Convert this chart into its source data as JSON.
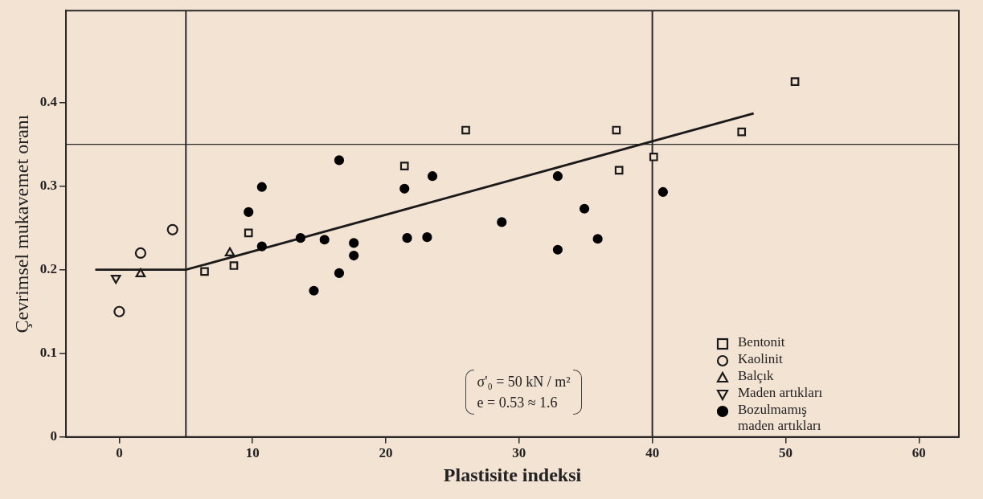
{
  "chart_data": {
    "type": "scatter",
    "xlabel": "Plastisite indeksi",
    "ylabel": "Çevrimsel mukavemet oranı",
    "xlim": [
      -4,
      63
    ],
    "xticks": [
      0,
      10,
      20,
      30,
      40,
      50,
      60
    ],
    "ylim": [
      0,
      0.51
    ],
    "yticks": [
      0,
      0.1,
      0.2,
      0.3,
      0.4
    ],
    "grid": false,
    "legend": "bottom right",
    "series": [
      {
        "name": "Bentonit",
        "marker": "square",
        "color": "#1a1a1a",
        "x": [
          6.4,
          8.6,
          9.7,
          21.4,
          26.0,
          37.3,
          37.5,
          40.1,
          46.7,
          50.7
        ],
        "values": [
          0.198,
          0.205,
          0.244,
          0.324,
          0.367,
          0.367,
          0.319,
          0.335,
          0.365,
          0.425
        ]
      },
      {
        "name": "Kaolinit",
        "marker": "circle",
        "color": "#1a1a1a",
        "x": [
          0,
          1.6,
          4
        ],
        "values": [
          0.15,
          0.22,
          0.248
        ]
      },
      {
        "name": "Balçık",
        "marker": "triangle",
        "color": "#1a1a1a",
        "x": [
          1.6,
          8.3
        ],
        "values": [
          0.195,
          0.22
        ]
      },
      {
        "name": "Maden artıkları",
        "marker": "triangle-down",
        "color": "#1a1a1a",
        "x": [
          -0.25
        ],
        "values": [
          0.19
        ]
      },
      {
        "name": "Bozulmamış maden artıkları",
        "marker": "filled-circle",
        "color": "#000000",
        "x": [
          9.7,
          10.7,
          10.7,
          13.6,
          14.6,
          15.4,
          16.5,
          16.5,
          17.6,
          17.6,
          21.4,
          21.6,
          23.1,
          23.5,
          28.7,
          32.9,
          32.9,
          34.9,
          35.9,
          40.8
        ],
        "values": [
          0.269,
          0.299,
          0.228,
          0.238,
          0.175,
          0.236,
          0.331,
          0.196,
          0.232,
          0.217,
          0.297,
          0.238,
          0.239,
          0.312,
          0.257,
          0.312,
          0.224,
          0.273,
          0.237,
          0.293
        ]
      },
      {
        "type": "line",
        "marker": "none",
        "line_style": "solid",
        "color": "#1a1a1a",
        "x": [
          -1.8,
          5,
          47.6
        ],
        "values": [
          0.2,
          0.2,
          0.387
        ]
      }
    ],
    "ref_lines": [
      {
        "axis": "x",
        "value": 5,
        "color": "#2a2a2a"
      },
      {
        "axis": "x",
        "value": 40,
        "color": "#2a2a2a"
      },
      {
        "axis": "y",
        "value": 0.35,
        "color": "#2a2a2a"
      }
    ],
    "annotations": [
      "σ'₀ = 50 kN / m²",
      "e = 0.53 ≈ 1.6"
    ]
  }
}
